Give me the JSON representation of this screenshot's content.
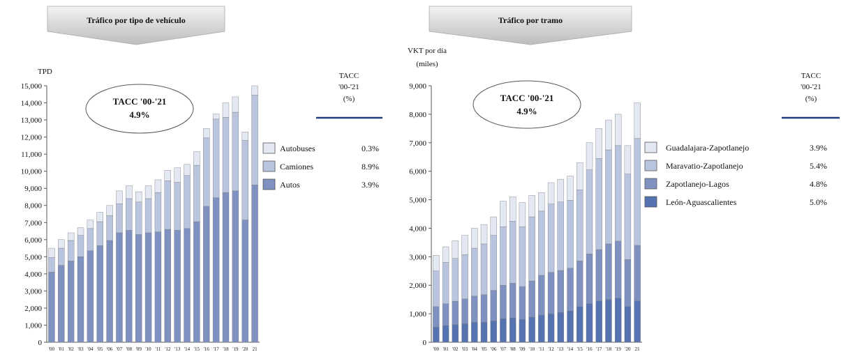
{
  "banners": {
    "left": "Tráfico por tipo de vehículo",
    "right": "Tráfico por tramo"
  },
  "left_axis": {
    "label": "TPD"
  },
  "right_axis": {
    "label_line1": "VKT por día",
    "label_line2": "(miles)"
  },
  "tacc_header": {
    "line1": "TACC",
    "line2": "'00-'21",
    "line3": "(%)"
  },
  "callout": {
    "line1": "TACC '00-'21",
    "line2": "4.9%"
  },
  "chart_data": [
    {
      "type": "bar",
      "stacked": true,
      "title": "Tráfico por tipo de vehículo",
      "ylabel": "TPD",
      "ylim": [
        0,
        15000
      ],
      "yticks": [
        "0",
        "1,000",
        "2,000",
        "3,000",
        "4,000",
        "5,000",
        "6,000",
        "7,000",
        "8,000",
        "9,000",
        "10,000",
        "11,000",
        "12,000",
        "13,000",
        "14,000",
        "15,000"
      ],
      "categories": [
        "'00",
        "'01",
        "'02",
        "'03",
        "'04",
        "'05",
        "'06",
        "'07",
        "'08",
        "'09",
        "'10",
        "'11",
        "'12",
        "'13",
        "'14",
        "'15",
        "'16",
        "'17",
        "'18",
        "'19",
        "'20",
        "21"
      ],
      "series": [
        {
          "name": "Autos",
          "tacc": "3.9%",
          "color": "#7f91c1",
          "values": [
            4100,
            4500,
            4750,
            5000,
            5350,
            5650,
            5950,
            6400,
            6550,
            6300,
            6400,
            6450,
            6600,
            6550,
            6650,
            7050,
            7950,
            8450,
            8750,
            8850,
            7150,
            9200
          ]
        },
        {
          "name": "Camiones",
          "tacc": "8.9%",
          "color": "#b9c4df",
          "values": [
            850,
            1000,
            1200,
            1250,
            1300,
            1400,
            1450,
            1700,
            1850,
            1900,
            2000,
            2300,
            2850,
            2800,
            3100,
            3300,
            4000,
            4600,
            4400,
            4600,
            4650,
            5250
          ]
        },
        {
          "name": "Autobuses",
          "tacc": "0.3%",
          "color": "#e3e8f3",
          "values": [
            550,
            500,
            450,
            450,
            500,
            550,
            600,
            750,
            750,
            600,
            750,
            750,
            600,
            850,
            650,
            800,
            550,
            300,
            850,
            900,
            500,
            550
          ]
        }
      ]
    },
    {
      "type": "bar",
      "stacked": true,
      "title": "Tráfico por tramo",
      "ylabel": "VKT por día (miles)",
      "ylim": [
        0,
        9000
      ],
      "yticks": [
        "0",
        "1,000",
        "2,000",
        "3,000",
        "4,000",
        "5,000",
        "6,000",
        "7,000",
        "8,000",
        "9,000"
      ],
      "categories": [
        "'00",
        "'01",
        "'02",
        "'03",
        "'04",
        "'05",
        "'06",
        "'07",
        "'08",
        "'09",
        "'10",
        "'11",
        "'12",
        "'13",
        "'14",
        "'15",
        "'16",
        "'17",
        "'18",
        "'19",
        "'20",
        "21"
      ],
      "series": [
        {
          "name": "León-Aguascalientes",
          "tacc": "5.0%",
          "color": "#5573b0",
          "values": [
            530,
            580,
            620,
            650,
            700,
            700,
            750,
            830,
            850,
            800,
            880,
            950,
            1000,
            1050,
            1100,
            1250,
            1350,
            1450,
            1500,
            1550,
            1250,
            1450
          ]
        },
        {
          "name": "Zapotlanejo-Lagos",
          "tacc": "4.8%",
          "color": "#7f91c1",
          "values": [
            720,
            770,
            820,
            870,
            920,
            970,
            1070,
            1170,
            1220,
            1150,
            1270,
            1400,
            1450,
            1470,
            1500,
            1600,
            1750,
            1800,
            1950,
            2000,
            1650,
            1950
          ]
        },
        {
          "name": "Maravatio-Zapotlanejo",
          "tacc": "5.4%",
          "color": "#b9c4df",
          "values": [
            1250,
            1450,
            1500,
            1550,
            1680,
            1780,
            1930,
            2050,
            2180,
            2100,
            2250,
            2250,
            2400,
            2400,
            2380,
            2500,
            2950,
            3200,
            3300,
            3350,
            3000,
            3750
          ]
        },
        {
          "name": "Guadalajara-Zapotlanejo",
          "tacc": "3.9%",
          "color": "#e3e8f3",
          "values": [
            550,
            550,
            620,
            680,
            700,
            680,
            650,
            900,
            850,
            850,
            750,
            650,
            750,
            800,
            850,
            950,
            950,
            1050,
            1050,
            1100,
            1000,
            1250
          ]
        }
      ]
    }
  ]
}
